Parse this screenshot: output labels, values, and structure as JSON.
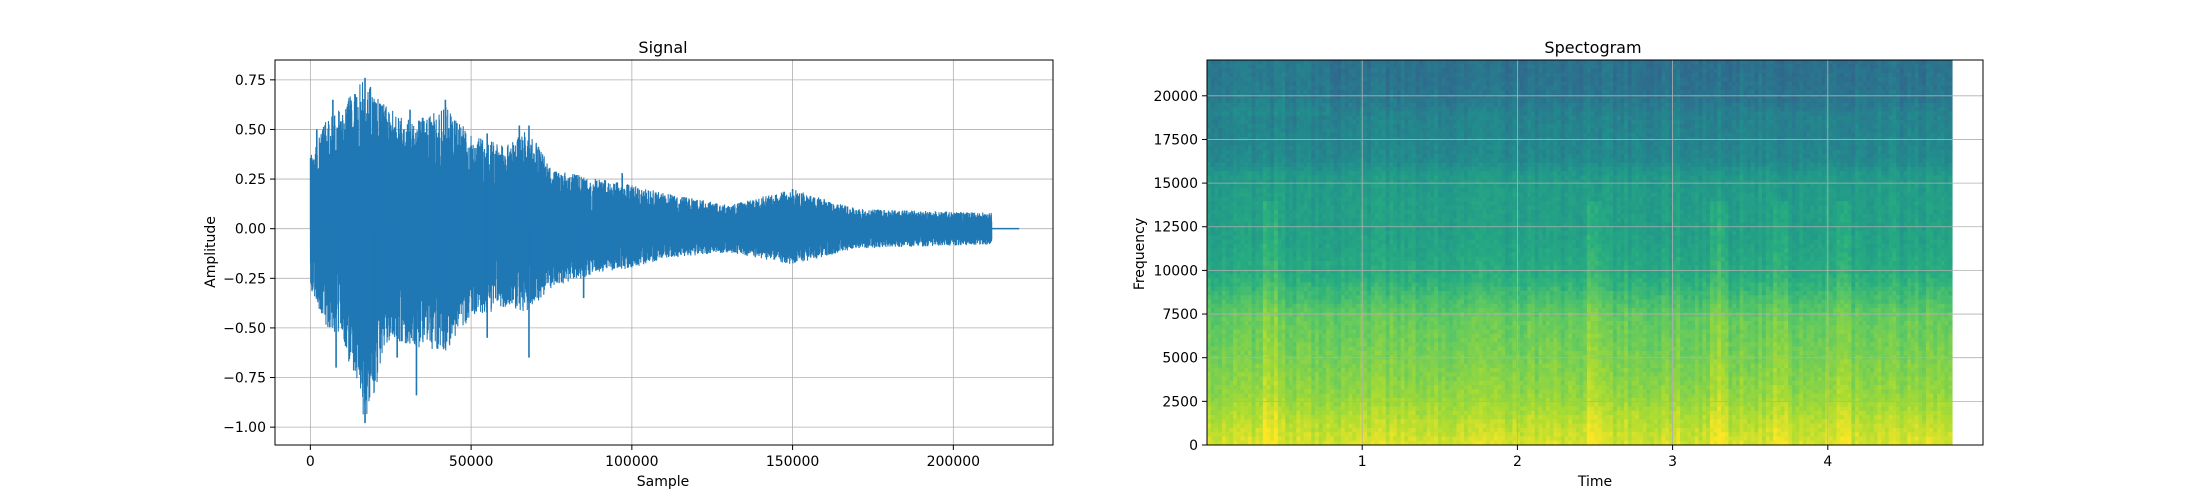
{
  "chart_data": [
    {
      "type": "line",
      "title": "Signal",
      "xlabel": "Sample",
      "ylabel": "Amplitude",
      "xlim": [
        -11000,
        231000
      ],
      "ylim": [
        -1.09,
        0.85
      ],
      "grid": true,
      "line_color": "#1f77b4",
      "x_ticks": [
        0,
        50000,
        100000,
        150000,
        200000
      ],
      "x_tick_labels": [
        "0",
        "50000",
        "100000",
        "150000",
        "200000"
      ],
      "y_ticks": [
        0.75,
        0.5,
        0.25,
        0.0,
        -0.25,
        -0.5,
        -0.75,
        -1.0
      ],
      "y_tick_labels": [
        "0.75",
        "0.50",
        "0.25",
        "0.00",
        "−0.25",
        "−0.50",
        "−0.75",
        "−1.00"
      ],
      "signal_length": 212000,
      "padded_length": 220500,
      "envelope": [
        [
          0,
          0.36,
          -0.3
        ],
        [
          5000,
          0.55,
          -0.5
        ],
        [
          10000,
          0.62,
          -0.55
        ],
        [
          17000,
          0.76,
          -0.98
        ],
        [
          25000,
          0.6,
          -0.55
        ],
        [
          33000,
          0.55,
          -0.6
        ],
        [
          42000,
          0.62,
          -0.62
        ],
        [
          50000,
          0.48,
          -0.45
        ],
        [
          60000,
          0.42,
          -0.4
        ],
        [
          68000,
          0.5,
          -0.42
        ],
        [
          75000,
          0.3,
          -0.3
        ],
        [
          90000,
          0.25,
          -0.22
        ],
        [
          100000,
          0.22,
          -0.2
        ],
        [
          110000,
          0.18,
          -0.15
        ],
        [
          130000,
          0.12,
          -0.12
        ],
        [
          150000,
          0.2,
          -0.18
        ],
        [
          170000,
          0.1,
          -0.1
        ],
        [
          190000,
          0.09,
          -0.09
        ],
        [
          212000,
          0.08,
          -0.08
        ]
      ],
      "peaks": [
        [
          2000,
          0.5
        ],
        [
          7000,
          0.65
        ],
        [
          12000,
          0.62
        ],
        [
          17000,
          0.76
        ],
        [
          22000,
          0.62
        ],
        [
          31000,
          0.6
        ],
        [
          42000,
          0.65
        ],
        [
          47000,
          0.45
        ],
        [
          55000,
          0.48
        ],
        [
          65000,
          0.52
        ],
        [
          68000,
          0.52
        ],
        [
          97000,
          0.28
        ],
        [
          150000,
          0.2
        ],
        [
          17000,
          -0.98
        ],
        [
          8000,
          -0.7
        ],
        [
          33000,
          -0.84
        ],
        [
          27000,
          -0.65
        ],
        [
          42000,
          -0.58
        ],
        [
          55000,
          -0.55
        ],
        [
          68000,
          -0.65
        ],
        [
          20000,
          -0.55
        ],
        [
          85000,
          -0.35
        ]
      ]
    },
    {
      "type": "heatmap",
      "title": "Spectogram",
      "xlabel": "Time",
      "ylabel": "Frequency",
      "xlim": [
        0,
        5.0
      ],
      "ylim": [
        0,
        22050
      ],
      "data_xmax": 4.8,
      "grid": true,
      "colormap": "viridis",
      "x_ticks": [
        1,
        2,
        3,
        4
      ],
      "x_tick_labels": [
        "1",
        "2",
        "3",
        "4"
      ],
      "y_ticks": [
        0,
        2500,
        5000,
        7500,
        10000,
        12500,
        15000,
        17500,
        20000
      ],
      "y_tick_labels": [
        "0",
        "2500",
        "5000",
        "7500",
        "10000",
        "12500",
        "15000",
        "17500",
        "20000"
      ],
      "band_levels": [
        [
          0,
          0.95
        ],
        [
          1500,
          0.9
        ],
        [
          3000,
          0.84
        ],
        [
          5000,
          0.8
        ],
        [
          7500,
          0.76
        ],
        [
          10000,
          0.62
        ],
        [
          12000,
          0.58
        ],
        [
          15500,
          0.55
        ],
        [
          16500,
          0.47
        ],
        [
          19000,
          0.45
        ],
        [
          20000,
          0.4
        ],
        [
          22050,
          0.38
        ]
      ],
      "transient_times": [
        0.4,
        2.5,
        3.3,
        3.7,
        4.1
      ]
    }
  ]
}
